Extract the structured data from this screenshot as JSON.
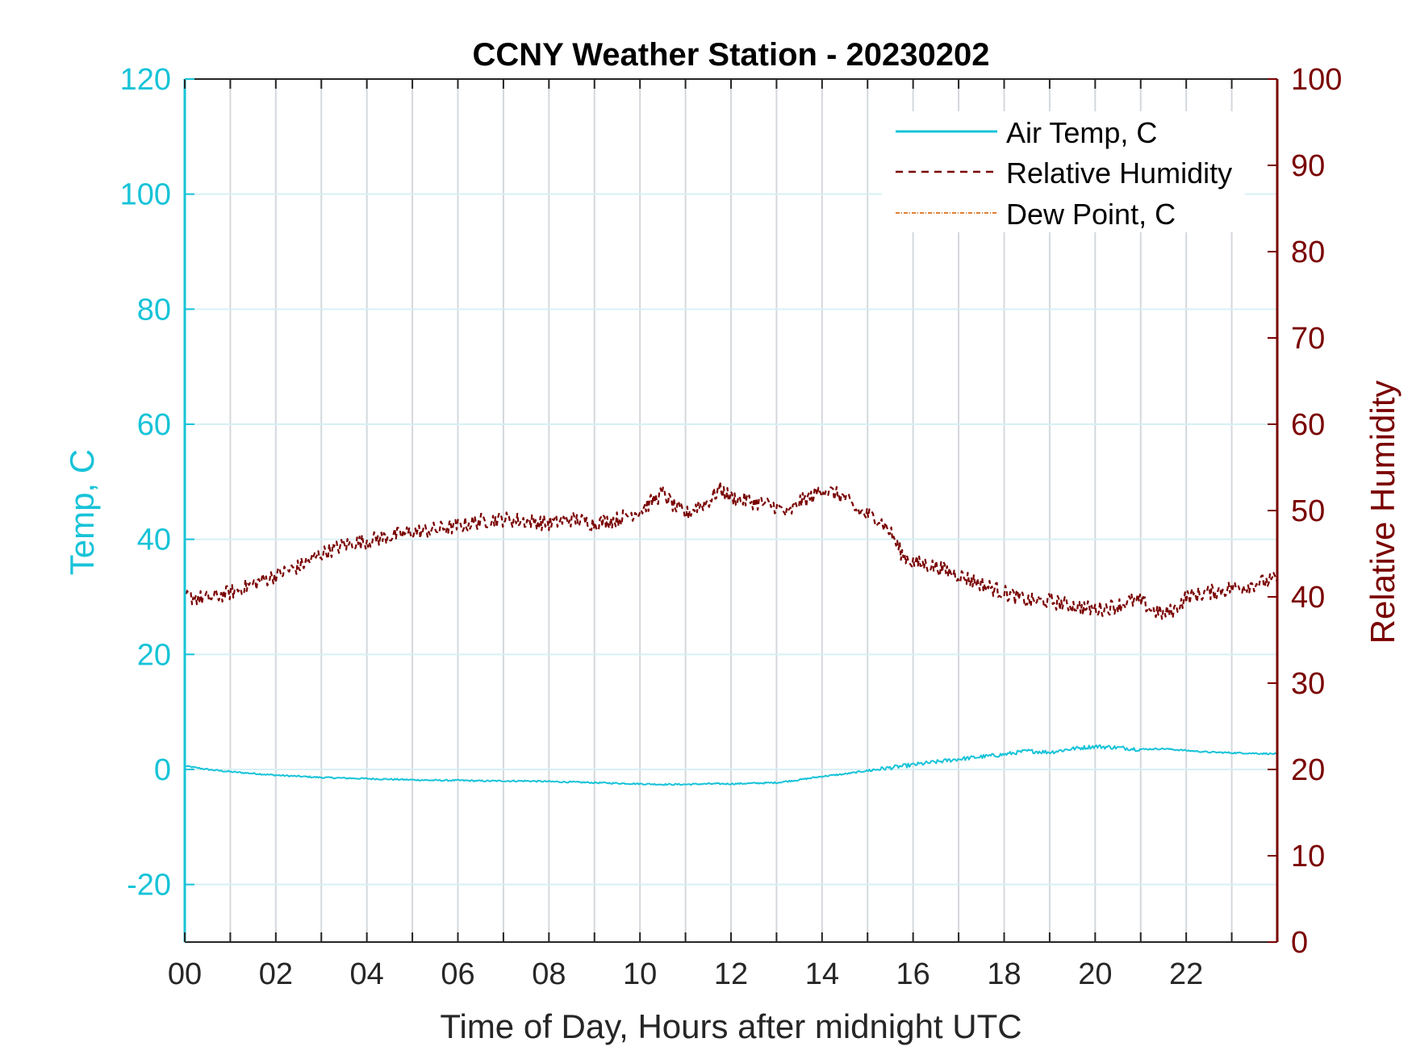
{
  "chart_data": {
    "type": "line",
    "title": "CCNY Weather Station - 20230202",
    "xlabel": "Time of Day, Hours after midnight UTC",
    "ylabel_left": "Temp, C",
    "ylabel_right": "Relative Humidity",
    "xlim": [
      0,
      24
    ],
    "ylim_left": [
      -30,
      120
    ],
    "ylim_right": [
      0,
      100
    ],
    "x_ticks": [
      0,
      2,
      4,
      6,
      8,
      10,
      12,
      14,
      16,
      18,
      20,
      22
    ],
    "x_tick_labels": [
      "00",
      "02",
      "04",
      "06",
      "08",
      "10",
      "12",
      "14",
      "16",
      "18",
      "20",
      "22"
    ],
    "y_left_ticks": [
      -20,
      0,
      20,
      40,
      60,
      80,
      100,
      120
    ],
    "y_right_ticks": [
      0,
      10,
      20,
      30,
      40,
      50,
      60,
      70,
      80,
      90,
      100
    ],
    "grid": true,
    "legend_position": "top-right",
    "colors": {
      "left_axis": "#17c3d8",
      "right_axis": "#7a0000",
      "air_temp": "#17c3d8",
      "relative_humidity": "#7a0000",
      "dew_point": "#e06a10"
    },
    "series": [
      {
        "name": "Air Temp, C",
        "axis": "left",
        "style": "solid",
        "x": [
          0,
          0.5,
          1,
          1.5,
          2,
          2.5,
          3,
          3.5,
          4,
          4.5,
          5,
          5.5,
          6,
          6.5,
          7,
          7.5,
          8,
          8.5,
          9,
          9.5,
          10,
          10.5,
          11,
          11.5,
          12,
          12.5,
          13,
          13.5,
          14,
          14.5,
          15,
          15.5,
          16,
          16.5,
          17,
          17.5,
          18,
          18.5,
          19,
          19.5,
          20,
          20.5,
          21,
          21.5,
          22,
          22.5,
          23,
          23.5,
          24
        ],
        "y": [
          0.6,
          0.0,
          -0.4,
          -0.7,
          -1.0,
          -1.2,
          -1.4,
          -1.5,
          -1.6,
          -1.7,
          -1.8,
          -1.9,
          -1.9,
          -2.0,
          -2.0,
          -2.0,
          -2.1,
          -2.2,
          -2.3,
          -2.4,
          -2.5,
          -2.6,
          -2.6,
          -2.5,
          -2.5,
          -2.4,
          -2.3,
          -1.8,
          -1.2,
          -0.8,
          -0.2,
          0.3,
          0.8,
          1.3,
          1.8,
          2.2,
          2.6,
          3.2,
          3.0,
          3.6,
          4.0,
          3.8,
          3.5,
          3.6,
          3.3,
          3.0,
          2.9,
          2.8,
          2.7
        ]
      },
      {
        "name": "Relative Humidity",
        "axis": "right",
        "style": "dashed",
        "x": [
          0,
          0.5,
          1,
          1.5,
          2,
          2.5,
          3,
          3.5,
          4,
          4.5,
          5,
          5.5,
          6,
          6.5,
          7,
          7.5,
          8,
          8.5,
          9,
          9.5,
          10,
          10.25,
          10.5,
          10.75,
          11,
          11.25,
          11.5,
          11.75,
          12,
          12.5,
          13,
          13.25,
          13.5,
          13.75,
          14,
          14.25,
          14.5,
          14.75,
          15,
          15.25,
          15.5,
          15.75,
          16,
          16.5,
          17,
          17.5,
          18,
          18.5,
          19,
          19.5,
          20,
          20.5,
          20.75,
          21,
          21.25,
          21.5,
          21.75,
          22,
          22.5,
          23,
          23.5,
          24
        ],
        "y": [
          40.0,
          39.8,
          40.5,
          41.5,
          42.5,
          43.5,
          45.0,
          46.0,
          46.5,
          47.0,
          47.5,
          47.8,
          48.2,
          48.8,
          49.0,
          48.8,
          48.5,
          49.0,
          48.5,
          49.0,
          50.0,
          51.0,
          52.0,
          50.5,
          49.5,
          50.5,
          51.0,
          52.5,
          51.5,
          51.0,
          50.5,
          49.5,
          51.0,
          51.5,
          52.5,
          52.0,
          51.5,
          50.0,
          49.5,
          49.0,
          47.5,
          45.0,
          44.0,
          43.5,
          42.5,
          41.5,
          40.5,
          39.5,
          39.5,
          39.0,
          38.5,
          39.0,
          39.5,
          39.5,
          38.5,
          38.0,
          38.5,
          40.0,
          40.5,
          41.0,
          41.5,
          42.0
        ]
      },
      {
        "name": "Dew Point, C",
        "axis": "left",
        "style": "dash-dot",
        "x": [],
        "y": []
      }
    ]
  }
}
